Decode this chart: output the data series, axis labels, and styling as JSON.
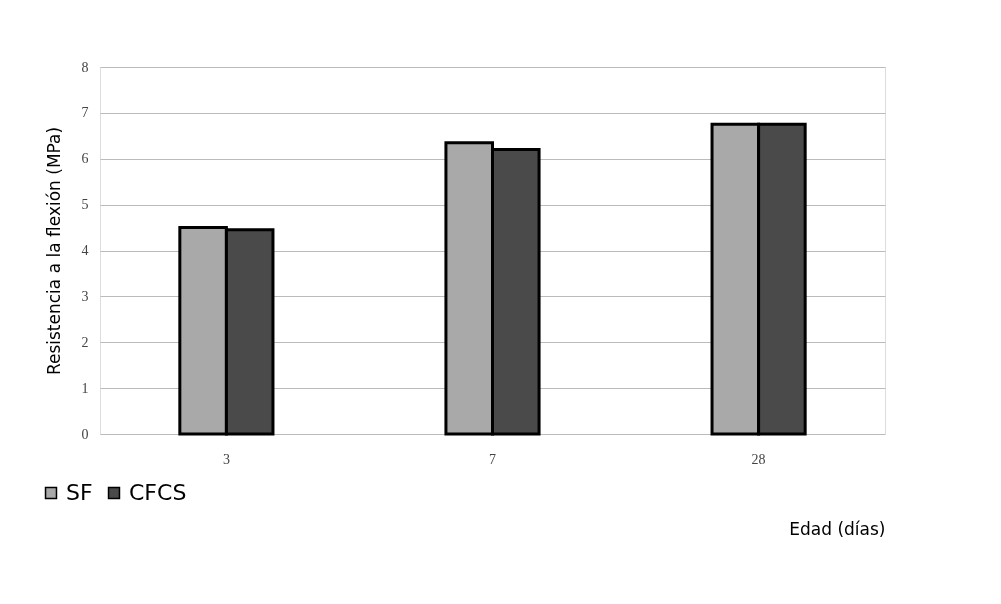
{
  "chart_data": {
    "type": "bar",
    "xlabel": "Edad (días)",
    "ylabel": "Resistencia a la flexión (MPa)",
    "categories": [
      "3",
      "7",
      "28"
    ],
    "series": [
      {
        "name": "SF",
        "color": "#a9a9a9",
        "values": [
          4.5,
          6.35,
          6.75
        ]
      },
      {
        "name": "CFCS",
        "color": "#4a4a4a",
        "values": [
          4.45,
          6.2,
          6.75
        ]
      }
    ],
    "ylim": [
      0,
      8
    ],
    "yticks": [
      0,
      1,
      2,
      3,
      4,
      5,
      6,
      7,
      8
    ],
    "grid": "y",
    "legend": "bottom left"
  }
}
